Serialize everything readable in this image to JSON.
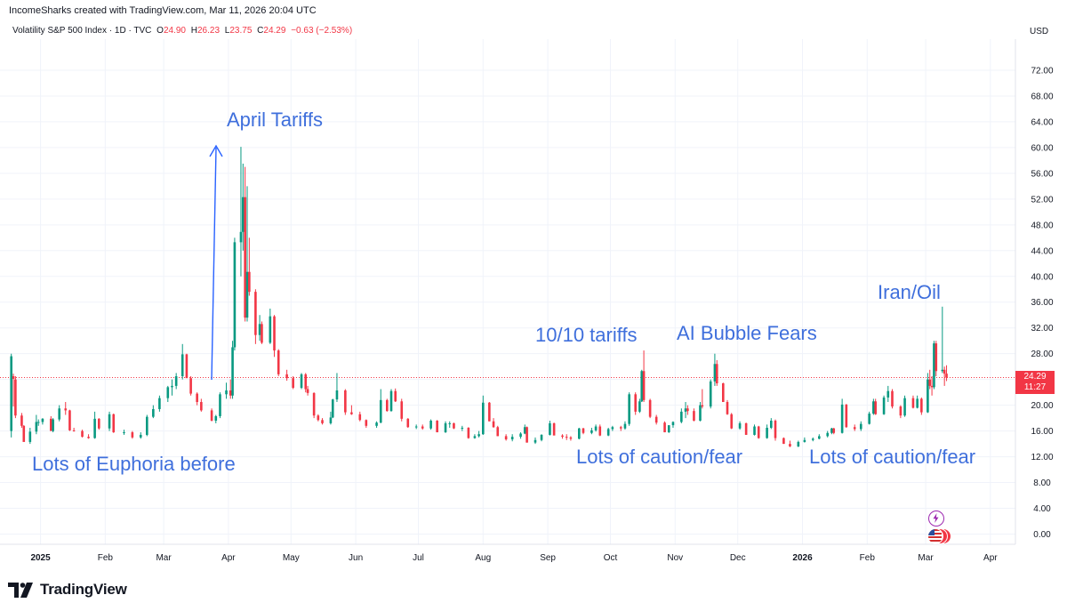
{
  "header": {
    "created_by": "IncomeSharks created with TradingView.com, Mar 11, 2026 20:04 UTC"
  },
  "legend": {
    "symbol": "Volatility S&P 500 Index · 1D · TVC",
    "o_label": "O",
    "o_value": "24.90",
    "h_label": "H",
    "h_value": "26.23",
    "l_label": "L",
    "l_value": "23.75",
    "c_label": "C",
    "c_value": "24.29",
    "change": "−0.63 (−2.53%)"
  },
  "currency": "USD",
  "price_tag": {
    "price": "24.29",
    "countdown": "11:27"
  },
  "brand": {
    "name": "TradingView"
  },
  "annotations": {
    "april_tariffs": "April Tariffs",
    "euphoria": "Lots of Euphoria before",
    "oct_tariffs": "10/10 tariffs",
    "ai_fears": "AI Bubble Fears",
    "iran_oil": "Iran/Oil",
    "caution1": "Lots of caution/fear",
    "caution2": "Lots of caution/fear"
  },
  "colors": {
    "up": "#089981",
    "down": "#f23645",
    "annotation": "#3f6fdc",
    "grid": "#f0f3fa"
  },
  "icons": [
    "tradingview-logo-icon",
    "lightning-event-icon",
    "us-flag-event-icon"
  ],
  "chart_data": {
    "type": "candlestick",
    "title": "Volatility S&P 500 Index · 1D · TVC",
    "ylim": [
      0,
      76
    ],
    "y_ticks": [
      0,
      4,
      8,
      12,
      16,
      20,
      24,
      28,
      32,
      36,
      40,
      44,
      48,
      52,
      56,
      60,
      64,
      68,
      72
    ],
    "y_tick_labels": [
      "0.00",
      "4.00",
      "8.00",
      "12.00",
      "16.00",
      "20.00",
      "24.00",
      "28.00",
      "32.00",
      "36.00",
      "40.00",
      "44.00",
      "48.00",
      "52.00",
      "56.00",
      "60.00",
      "64.00",
      "68.00",
      "72.00"
    ],
    "x_range": [
      "2024-12-16",
      "2026-04-13"
    ],
    "x_ticks": [
      {
        "date": "2025-01-01",
        "label": "2025",
        "bold": true
      },
      {
        "date": "2025-02-01",
        "label": "Feb"
      },
      {
        "date": "2025-03-01",
        "label": "Mar"
      },
      {
        "date": "2025-04-01",
        "label": "Apr"
      },
      {
        "date": "2025-05-01",
        "label": "May"
      },
      {
        "date": "2025-06-01",
        "label": "Jun"
      },
      {
        "date": "2025-07-01",
        "label": "Jul"
      },
      {
        "date": "2025-08-01",
        "label": "Aug"
      },
      {
        "date": "2025-09-01",
        "label": "Sep"
      },
      {
        "date": "2025-10-01",
        "label": "Oct"
      },
      {
        "date": "2025-11-01",
        "label": "Nov"
      },
      {
        "date": "2025-12-01",
        "label": "Dec"
      },
      {
        "date": "2026-01-01",
        "label": "2026",
        "bold": true
      },
      {
        "date": "2026-02-01",
        "label": "Feb"
      },
      {
        "date": "2026-03-01",
        "label": "Mar"
      },
      {
        "date": "2026-04-01",
        "label": "Apr"
      }
    ],
    "last_price": 24.29,
    "ohlc": [
      [
        "2024-12-18",
        16.0,
        28.0,
        15.0,
        27.6
      ],
      [
        "2024-12-19",
        24.5,
        24.9,
        19.8,
        24.1
      ],
      [
        "2024-12-20",
        24.0,
        24.5,
        18.0,
        18.4
      ],
      [
        "2024-12-23",
        18.4,
        18.8,
        16.5,
        16.8
      ],
      [
        "2024-12-24",
        16.8,
        16.9,
        14.5,
        14.3
      ],
      [
        "2024-12-27",
        14.3,
        16.5,
        14.0,
        15.9
      ],
      [
        "2024-12-30",
        15.9,
        18.5,
        15.5,
        17.4
      ],
      [
        "2024-12-31",
        17.4,
        17.8,
        16.8,
        17.4
      ],
      [
        "2025-01-02",
        17.4,
        18.0,
        17.0,
        17.9
      ],
      [
        "2025-01-06",
        17.9,
        18.3,
        16.5,
        16.0
      ],
      [
        "2025-01-07",
        16.0,
        18.0,
        15.8,
        17.8
      ],
      [
        "2025-01-10",
        17.8,
        20.0,
        17.5,
        19.5
      ],
      [
        "2025-01-13",
        19.5,
        20.5,
        18.5,
        19.2
      ],
      [
        "2025-01-15",
        19.2,
        19.3,
        16.0,
        16.1
      ],
      [
        "2025-01-17",
        16.1,
        16.5,
        15.9,
        16.0
      ],
      [
        "2025-01-21",
        16.0,
        16.2,
        15.0,
        15.1
      ],
      [
        "2025-01-24",
        15.1,
        15.5,
        14.8,
        14.9
      ],
      [
        "2025-01-27",
        14.9,
        19.0,
        14.8,
        17.9
      ],
      [
        "2025-01-29",
        17.9,
        18.0,
        16.2,
        16.4
      ],
      [
        "2025-02-03",
        16.4,
        19.0,
        16.0,
        18.6
      ],
      [
        "2025-02-05",
        18.6,
        18.7,
        15.7,
        15.8
      ],
      [
        "2025-02-10",
        15.8,
        16.2,
        15.4,
        15.8
      ],
      [
        "2025-02-14",
        15.8,
        16.0,
        14.8,
        15.0
      ],
      [
        "2025-02-18",
        15.0,
        15.8,
        14.8,
        15.4
      ],
      [
        "2025-02-21",
        15.4,
        18.5,
        15.2,
        18.2
      ],
      [
        "2025-02-24",
        18.2,
        20.0,
        18.0,
        19.4
      ],
      [
        "2025-02-27",
        19.4,
        21.5,
        19.0,
        21.1
      ],
      [
        "2025-03-03",
        21.1,
        23.0,
        20.5,
        22.8
      ],
      [
        "2025-03-05",
        22.8,
        24.0,
        21.5,
        23.0
      ],
      [
        "2025-03-07",
        23.0,
        25.0,
        22.5,
        24.5
      ],
      [
        "2025-03-10",
        24.5,
        29.5,
        24.0,
        27.9
      ],
      [
        "2025-03-12",
        27.9,
        28.0,
        24.5,
        24.2
      ],
      [
        "2025-03-14",
        24.2,
        24.5,
        21.5,
        21.8
      ],
      [
        "2025-03-17",
        21.8,
        22.0,
        20.0,
        20.5
      ],
      [
        "2025-03-19",
        20.5,
        21.0,
        19.0,
        19.2
      ],
      [
        "2025-03-24",
        19.2,
        19.5,
        17.5,
        17.6
      ],
      [
        "2025-03-26",
        17.6,
        18.5,
        17.2,
        18.3
      ],
      [
        "2025-03-28",
        18.3,
        22.0,
        18.0,
        21.7
      ],
      [
        "2025-03-31",
        21.7,
        23.5,
        21.0,
        22.3
      ],
      [
        "2025-04-02",
        22.3,
        24.0,
        21.0,
        21.5
      ],
      [
        "2025-04-03",
        21.5,
        30.0,
        21.0,
        29.0
      ],
      [
        "2025-04-04",
        29.0,
        46.0,
        28.5,
        45.3
      ],
      [
        "2025-04-07",
        45.3,
        60.1,
        40.0,
        46.9
      ],
      [
        "2025-04-08",
        46.9,
        57.5,
        44.0,
        52.3
      ],
      [
        "2025-04-09",
        52.3,
        57.0,
        33.0,
        33.6
      ],
      [
        "2025-04-10",
        33.6,
        54.0,
        33.0,
        40.7
      ],
      [
        "2025-04-11",
        40.7,
        46.0,
        37.0,
        37.6
      ],
      [
        "2025-04-14",
        37.6,
        38.0,
        29.5,
        30.9
      ],
      [
        "2025-04-16",
        30.9,
        34.0,
        30.0,
        32.6
      ],
      [
        "2025-04-17",
        32.6,
        33.0,
        29.5,
        29.7
      ],
      [
        "2025-04-21",
        29.7,
        35.0,
        29.5,
        33.8
      ],
      [
        "2025-04-23",
        33.8,
        34.0,
        27.5,
        28.5
      ],
      [
        "2025-04-25",
        28.5,
        28.7,
        24.5,
        24.8
      ],
      [
        "2025-04-29",
        24.8,
        25.5,
        23.8,
        24.2
      ],
      [
        "2025-05-02",
        24.2,
        24.5,
        22.5,
        22.7
      ],
      [
        "2025-05-06",
        22.7,
        25.0,
        22.5,
        24.8
      ],
      [
        "2025-05-08",
        24.8,
        25.0,
        22.0,
        22.5
      ],
      [
        "2025-05-09",
        22.5,
        23.0,
        21.5,
        21.9
      ],
      [
        "2025-05-12",
        21.9,
        22.0,
        18.0,
        18.4
      ],
      [
        "2025-05-14",
        18.4,
        18.6,
        17.5,
        17.7
      ],
      [
        "2025-05-16",
        17.7,
        18.0,
        17.0,
        17.2
      ],
      [
        "2025-05-20",
        17.2,
        19.0,
        17.0,
        18.1
      ],
      [
        "2025-05-21",
        18.1,
        21.0,
        18.0,
        20.9
      ],
      [
        "2025-05-23",
        20.9,
        25.0,
        20.5,
        22.3
      ],
      [
        "2025-05-27",
        22.3,
        22.5,
        18.5,
        18.9
      ],
      [
        "2025-05-30",
        18.9,
        20.0,
        18.5,
        18.6
      ],
      [
        "2025-06-03",
        18.6,
        19.0,
        17.5,
        17.7
      ],
      [
        "2025-06-06",
        17.7,
        17.8,
        16.5,
        16.8
      ],
      [
        "2025-06-11",
        16.8,
        17.5,
        16.5,
        17.3
      ],
      [
        "2025-06-13",
        17.3,
        22.5,
        17.2,
        20.8
      ],
      [
        "2025-06-16",
        20.8,
        21.0,
        19.0,
        19.1
      ],
      [
        "2025-06-18",
        19.1,
        22.5,
        19.0,
        22.2
      ],
      [
        "2025-06-20",
        22.2,
        22.6,
        20.5,
        20.6
      ],
      [
        "2025-06-23",
        20.6,
        21.0,
        17.5,
        17.9
      ],
      [
        "2025-06-26",
        17.9,
        18.0,
        16.5,
        16.6
      ],
      [
        "2025-06-30",
        16.6,
        17.0,
        16.3,
        16.7
      ],
      [
        "2025-07-03",
        16.7,
        17.0,
        16.2,
        16.4
      ],
      [
        "2025-07-07",
        16.4,
        17.8,
        16.2,
        17.6
      ],
      [
        "2025-07-10",
        17.6,
        17.7,
        15.8,
        15.8
      ],
      [
        "2025-07-14",
        15.8,
        17.5,
        15.7,
        17.2
      ],
      [
        "2025-07-16",
        17.2,
        17.5,
        16.5,
        17.2
      ],
      [
        "2025-07-18",
        17.2,
        17.3,
        16.3,
        16.4
      ],
      [
        "2025-07-22",
        16.4,
        16.8,
        16.0,
        16.5
      ],
      [
        "2025-07-25",
        16.5,
        16.6,
        14.8,
        14.9
      ],
      [
        "2025-07-28",
        14.9,
        15.5,
        14.8,
        15.2
      ],
      [
        "2025-07-30",
        15.2,
        16.0,
        15.0,
        15.5
      ],
      [
        "2025-08-01",
        15.5,
        21.5,
        15.4,
        20.4
      ],
      [
        "2025-08-04",
        20.4,
        20.5,
        17.5,
        17.5
      ],
      [
        "2025-08-06",
        17.5,
        18.0,
        16.5,
        16.6
      ],
      [
        "2025-08-08",
        16.6,
        16.8,
        15.2,
        15.2
      ],
      [
        "2025-08-12",
        15.2,
        15.5,
        14.5,
        14.7
      ],
      [
        "2025-08-15",
        14.7,
        15.5,
        14.4,
        15.1
      ],
      [
        "2025-08-19",
        15.1,
        15.8,
        14.8,
        15.6
      ],
      [
        "2025-08-21",
        15.6,
        17.0,
        15.5,
        16.6
      ],
      [
        "2025-08-22",
        16.6,
        16.7,
        14.2,
        14.2
      ],
      [
        "2025-08-26",
        14.2,
        15.0,
        14.0,
        14.6
      ],
      [
        "2025-08-29",
        14.6,
        15.5,
        14.4,
        15.4
      ],
      [
        "2025-09-02",
        15.4,
        17.6,
        15.3,
        17.2
      ],
      [
        "2025-09-04",
        17.2,
        17.3,
        15.5,
        15.3
      ],
      [
        "2025-09-08",
        15.3,
        15.5,
        14.8,
        15.1
      ],
      [
        "2025-09-10",
        15.1,
        15.5,
        14.6,
        15.0
      ],
      [
        "2025-09-12",
        15.0,
        15.2,
        14.5,
        14.8
      ],
      [
        "2025-09-16",
        14.8,
        16.5,
        14.7,
        16.4
      ],
      [
        "2025-09-18",
        16.4,
        16.5,
        15.5,
        15.7
      ],
      [
        "2025-09-22",
        15.7,
        16.5,
        15.5,
        16.1
      ],
      [
        "2025-09-24",
        16.1,
        17.0,
        15.9,
        16.7
      ],
      [
        "2025-09-26",
        16.7,
        17.0,
        15.2,
        15.3
      ],
      [
        "2025-09-30",
        15.3,
        16.5,
        15.2,
        16.3
      ],
      [
        "2025-10-02",
        16.3,
        16.8,
        16.0,
        16.6
      ],
      [
        "2025-10-06",
        16.6,
        16.8,
        16.0,
        16.4
      ],
      [
        "2025-10-08",
        16.4,
        17.5,
        16.2,
        17.1
      ],
      [
        "2025-10-10",
        17.1,
        22.0,
        16.8,
        21.7
      ],
      [
        "2025-10-13",
        21.7,
        22.0,
        18.5,
        19.0
      ],
      [
        "2025-10-15",
        19.0,
        21.0,
        18.8,
        20.6
      ],
      [
        "2025-10-16",
        20.6,
        25.5,
        20.5,
        25.3
      ],
      [
        "2025-10-17",
        25.3,
        28.5,
        20.5,
        20.8
      ],
      [
        "2025-10-20",
        20.8,
        21.0,
        18.0,
        18.2
      ],
      [
        "2025-10-23",
        18.2,
        18.5,
        17.0,
        17.3
      ],
      [
        "2025-10-27",
        17.3,
        17.5,
        15.8,
        15.8
      ],
      [
        "2025-10-29",
        15.8,
        16.8,
        15.7,
        16.9
      ],
      [
        "2025-10-31",
        16.9,
        17.5,
        16.5,
        17.4
      ],
      [
        "2025-11-04",
        17.4,
        19.5,
        17.2,
        19.0
      ],
      [
        "2025-11-06",
        19.0,
        20.5,
        18.0,
        19.5
      ],
      [
        "2025-11-07",
        19.5,
        20.0,
        18.5,
        19.1
      ],
      [
        "2025-11-10",
        19.1,
        19.5,
        17.5,
        17.6
      ],
      [
        "2025-11-13",
        17.6,
        20.5,
        17.5,
        20.0
      ],
      [
        "2025-11-14",
        20.0,
        22.5,
        19.5,
        19.8
      ],
      [
        "2025-11-18",
        19.8,
        24.0,
        19.5,
        23.7
      ],
      [
        "2025-11-20",
        23.7,
        28.0,
        23.0,
        26.4
      ],
      [
        "2025-11-21",
        26.4,
        27.0,
        23.0,
        23.4
      ],
      [
        "2025-11-24",
        23.4,
        23.5,
        20.5,
        20.5
      ],
      [
        "2025-11-26",
        20.5,
        20.8,
        18.5,
        18.6
      ],
      [
        "2025-11-28",
        18.6,
        18.8,
        16.3,
        16.4
      ],
      [
        "2025-12-02",
        16.4,
        17.5,
        16.2,
        17.2
      ],
      [
        "2025-12-05",
        17.2,
        17.3,
        15.4,
        15.4
      ],
      [
        "2025-12-09",
        15.4,
        17.0,
        15.3,
        16.7
      ],
      [
        "2025-12-11",
        16.7,
        16.8,
        14.8,
        14.9
      ],
      [
        "2025-12-15",
        14.9,
        17.0,
        14.8,
        16.5
      ],
      [
        "2025-12-17",
        16.5,
        18.0,
        16.3,
        17.6
      ],
      [
        "2025-12-19",
        17.6,
        17.8,
        14.5,
        14.9
      ],
      [
        "2025-12-23",
        14.9,
        15.0,
        14.0,
        14.0
      ],
      [
        "2025-12-26",
        14.0,
        14.5,
        13.5,
        13.6
      ],
      [
        "2025-12-30",
        13.6,
        14.5,
        13.5,
        14.3
      ],
      [
        "2026-01-02",
        14.3,
        15.0,
        14.2,
        14.6
      ],
      [
        "2026-01-06",
        14.6,
        15.0,
        14.4,
        14.8
      ],
      [
        "2026-01-09",
        14.8,
        15.5,
        14.7,
        15.2
      ],
      [
        "2026-01-13",
        15.2,
        16.0,
        15.0,
        15.7
      ],
      [
        "2026-01-15",
        15.7,
        16.5,
        15.5,
        16.4
      ],
      [
        "2026-01-16",
        16.4,
        16.5,
        15.5,
        15.7
      ],
      [
        "2026-01-20",
        15.7,
        21.0,
        15.6,
        20.1
      ],
      [
        "2026-01-22",
        20.1,
        20.2,
        16.5,
        16.6
      ],
      [
        "2026-01-26",
        16.6,
        17.0,
        16.0,
        16.3
      ],
      [
        "2026-01-29",
        16.3,
        17.5,
        16.0,
        17.1
      ],
      [
        "2026-02-02",
        17.1,
        19.0,
        17.0,
        18.7
      ],
      [
        "2026-02-04",
        18.7,
        21.0,
        18.5,
        20.6
      ],
      [
        "2026-02-05",
        20.6,
        21.0,
        18.5,
        18.6
      ],
      [
        "2026-02-09",
        18.6,
        21.5,
        18.5,
        21.2
      ],
      [
        "2026-02-11",
        21.2,
        23.0,
        20.5,
        22.2
      ],
      [
        "2026-02-13",
        22.2,
        22.5,
        19.5,
        19.8
      ],
      [
        "2026-02-17",
        19.8,
        20.0,
        18.0,
        18.4
      ],
      [
        "2026-02-19",
        18.4,
        21.5,
        18.2,
        21.1
      ],
      [
        "2026-02-23",
        21.1,
        21.5,
        19.5,
        19.6
      ],
      [
        "2026-02-25",
        19.6,
        21.5,
        19.5,
        21.0
      ],
      [
        "2026-02-27",
        21.0,
        21.2,
        18.5,
        18.9
      ],
      [
        "2026-03-02",
        18.9,
        25.0,
        18.8,
        24.0
      ],
      [
        "2026-03-03",
        24.0,
        25.5,
        22.5,
        23.0
      ],
      [
        "2026-03-04",
        23.0,
        24.5,
        21.5,
        22.8
      ],
      [
        "2026-03-05",
        22.8,
        30.0,
        22.5,
        29.6
      ],
      [
        "2026-03-06",
        29.6,
        30.0,
        24.5,
        25.3
      ],
      [
        "2026-03-09",
        25.3,
        35.3,
        25.0,
        25.5
      ],
      [
        "2026-03-10",
        25.5,
        26.0,
        23.0,
        24.9
      ],
      [
        "2026-03-11",
        24.9,
        26.2,
        23.75,
        24.29
      ]
    ]
  }
}
